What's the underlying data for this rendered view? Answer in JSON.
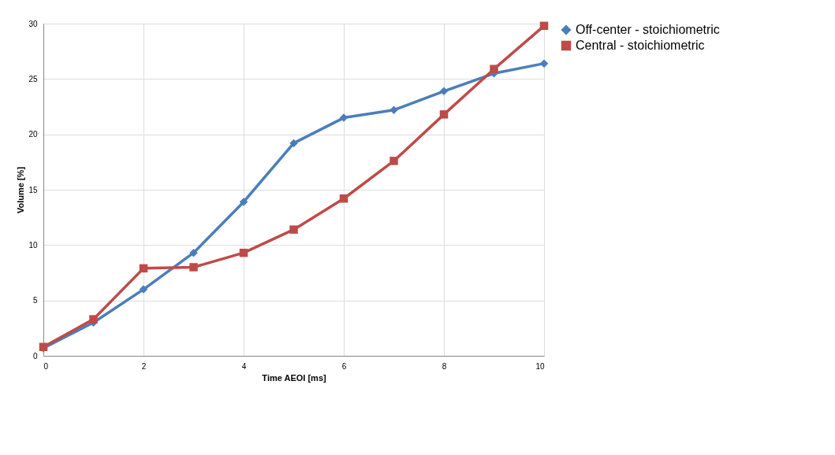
{
  "chart_data": {
    "type": "line",
    "xlabel": "Time AEOI [ms]",
    "ylabel": "Volume [%]",
    "x": [
      0,
      1,
      2,
      3,
      4,
      5,
      6,
      7,
      8,
      9,
      10
    ],
    "series": [
      {
        "name": "Off-center - stoichiometric",
        "color": "#4a7ebb",
        "marker": "diamond",
        "values": [
          0.7,
          3.0,
          6.0,
          9.3,
          13.9,
          19.2,
          21.5,
          22.2,
          23.9,
          25.5,
          26.4
        ]
      },
      {
        "name": "Central - stoichiometric",
        "color": "#be4b48",
        "marker": "square",
        "values": [
          0.8,
          3.3,
          7.9,
          8.0,
          9.3,
          11.4,
          14.2,
          17.6,
          21.8,
          25.9,
          29.8
        ]
      }
    ],
    "xlim": [
      0,
      10
    ],
    "xticks": [
      0,
      2,
      4,
      6,
      8,
      10
    ],
    "ylim": [
      0,
      30
    ],
    "yticks": [
      0,
      5,
      10,
      15,
      20,
      25,
      30
    ],
    "grid": true,
    "legend": "right",
    "line_style": "solid"
  }
}
